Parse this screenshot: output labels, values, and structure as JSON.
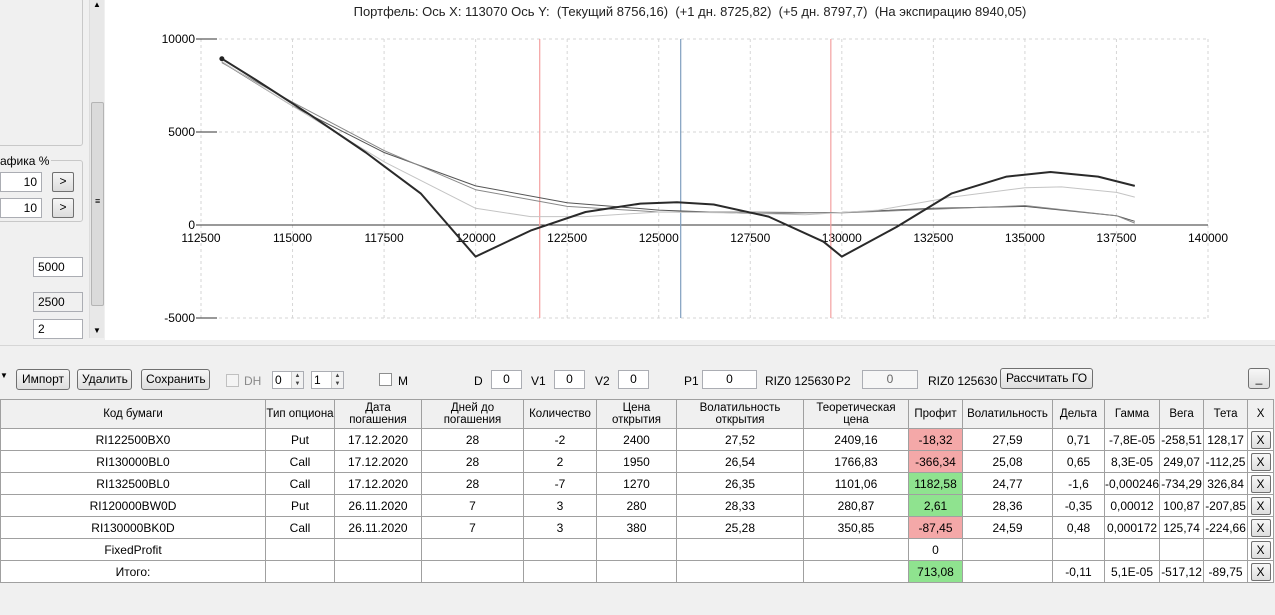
{
  "left_panel": {
    "group_label": "афика %",
    "field1": "10",
    "field2": "10",
    "next_btn": ">",
    "field_a": "5000",
    "field_b": "2500",
    "field_c": "2"
  },
  "chart": {
    "title": "Портфель: Ось X: 113070 Ось Y:  (Текущий 8756,16)  (+1 дн. 8725,82)  (+5 дн. 8797,7)  (На экспирацию 8940,05)"
  },
  "chart_data": {
    "type": "line",
    "xlim": [
      112500,
      140000
    ],
    "ylim": [
      -5000,
      10000
    ],
    "x_ticks": [
      "112500",
      "115000",
      "117500",
      "120000",
      "122500",
      "125000",
      "127500",
      "130000",
      "132500",
      "135000",
      "137500",
      "140000"
    ],
    "y_ticks": [
      "10000",
      "5000",
      "0",
      "-5000"
    ],
    "grid": true,
    "vertical_markers": [
      {
        "x": 121750,
        "color": "#f4a0a0"
      },
      {
        "x": 125600,
        "color": "#7f9fbf"
      },
      {
        "x": 129700,
        "color": "#f4a0a0"
      }
    ],
    "series": [
      {
        "color": "#2a2a2a",
        "width": 2,
        "x": [
          113070,
          114000,
          115500,
          117000,
          118500,
          120000,
          121500,
          123000,
          124500,
          125500,
          126500,
          128000,
          129500,
          130000,
          131500,
          133000,
          134500,
          135700,
          137000,
          138000
        ],
        "y": [
          8940,
          7800,
          5900,
          3900,
          1700,
          -1700,
          -300,
          700,
          1150,
          1220,
          1100,
          450,
          -900,
          -1700,
          -100,
          1700,
          2600,
          2850,
          2600,
          2100
        ]
      },
      {
        "color": "#555555",
        "width": 1,
        "x": [
          113070,
          115000,
          117500,
          120000,
          122500,
          125000,
          127500,
          130000,
          132500,
          135000,
          137500,
          138000
        ],
        "y": [
          8756,
          6400,
          3900,
          2100,
          1200,
          800,
          620,
          680,
          900,
          1000,
          500,
          200
        ]
      },
      {
        "color": "#888888",
        "width": 1,
        "x": [
          113070,
          115000,
          117500,
          120000,
          122500,
          125000,
          127500,
          130000,
          132500,
          135000,
          137500,
          138000
        ],
        "y": [
          8726,
          6600,
          4000,
          1900,
          1000,
          700,
          700,
          650,
          850,
          1050,
          500,
          100
        ]
      },
      {
        "color": "#c4c4c4",
        "width": 1,
        "x": [
          113070,
          115000,
          117500,
          120000,
          121500,
          123000,
          125000,
          127000,
          129000,
          131000,
          133000,
          135000,
          136000,
          137500,
          138000
        ],
        "y": [
          8798,
          6400,
          3400,
          900,
          450,
          450,
          700,
          650,
          550,
          800,
          1500,
          2000,
          2050,
          1750,
          1500
        ]
      }
    ]
  },
  "toolbar": {
    "import": "Импорт",
    "delete": "Удалить",
    "save": "Сохранить",
    "dh": "DH",
    "spin1": "0",
    "spin2": "1",
    "m": "M",
    "d_label": "D",
    "d_val": "0",
    "v1_label": "V1",
    "v1_val": "0",
    "v2_label": "V2",
    "v2_val": "0",
    "p1_label": "P1",
    "p1_val": "0",
    "riz1": "RIZ0 125630",
    "p2_label": "P2",
    "p2_val": "0",
    "riz2": "RIZ0 125630",
    "calc_go": "Рассчитать ГО",
    "minimize": "_"
  },
  "table": {
    "headers": [
      "Код бумаги",
      "Тип опциона",
      "Дата погашения",
      "Дней до погашения",
      "Количество",
      "Цена открытия",
      "Волатильность открытия",
      "Теоретическая цена",
      "Профит",
      "Волатильность",
      "Дельта",
      "Гамма",
      "Вега",
      "Тета",
      "X"
    ],
    "rows": [
      {
        "c": [
          "RI122500BX0",
          "Put",
          "17.12.2020",
          "28",
          "-2",
          "2400",
          "27,52",
          "2409,16",
          "-18,32",
          "27,59",
          "0,71",
          "-7,8E-05",
          "-258,51",
          "128,17",
          "X"
        ],
        "profit": "pink"
      },
      {
        "c": [
          "RI130000BL0",
          "Call",
          "17.12.2020",
          "28",
          "2",
          "1950",
          "26,54",
          "1766,83",
          "-366,34",
          "25,08",
          "0,65",
          "8,3E-05",
          "249,07",
          "-112,25",
          "X"
        ],
        "profit": "pink"
      },
      {
        "c": [
          "RI132500BL0",
          "Call",
          "17.12.2020",
          "28",
          "-7",
          "1270",
          "26,35",
          "1101,06",
          "1182,58",
          "24,77",
          "-1,6",
          "-0,000246",
          "-734,29",
          "326,84",
          "X"
        ],
        "profit": "green"
      },
      {
        "c": [
          "RI120000BW0D",
          "Put",
          "26.11.2020",
          "7",
          "3",
          "280",
          "28,33",
          "280,87",
          "2,61",
          "28,36",
          "-0,35",
          "0,00012",
          "100,87",
          "-207,85",
          "X"
        ],
        "profit": "green"
      },
      {
        "c": [
          "RI130000BK0D",
          "Call",
          "26.11.2020",
          "7",
          "3",
          "380",
          "25,28",
          "350,85",
          "-87,45",
          "24,59",
          "0,48",
          "0,000172",
          "125,74",
          "-224,66",
          "X"
        ],
        "profit": "pink"
      },
      {
        "c": [
          "FixedProfit",
          "",
          "",
          "",
          "",
          "",
          "",
          "",
          "0",
          "",
          "",
          "",
          "",
          "",
          "X"
        ],
        "profit": "none"
      },
      {
        "c": [
          "Итого:",
          "",
          "",
          "",
          "",
          "",
          "",
          "",
          "713,08",
          "",
          "-0,11",
          "5,1E-05",
          "-517,12",
          "-89,75",
          "X"
        ],
        "profit": "green"
      }
    ]
  }
}
